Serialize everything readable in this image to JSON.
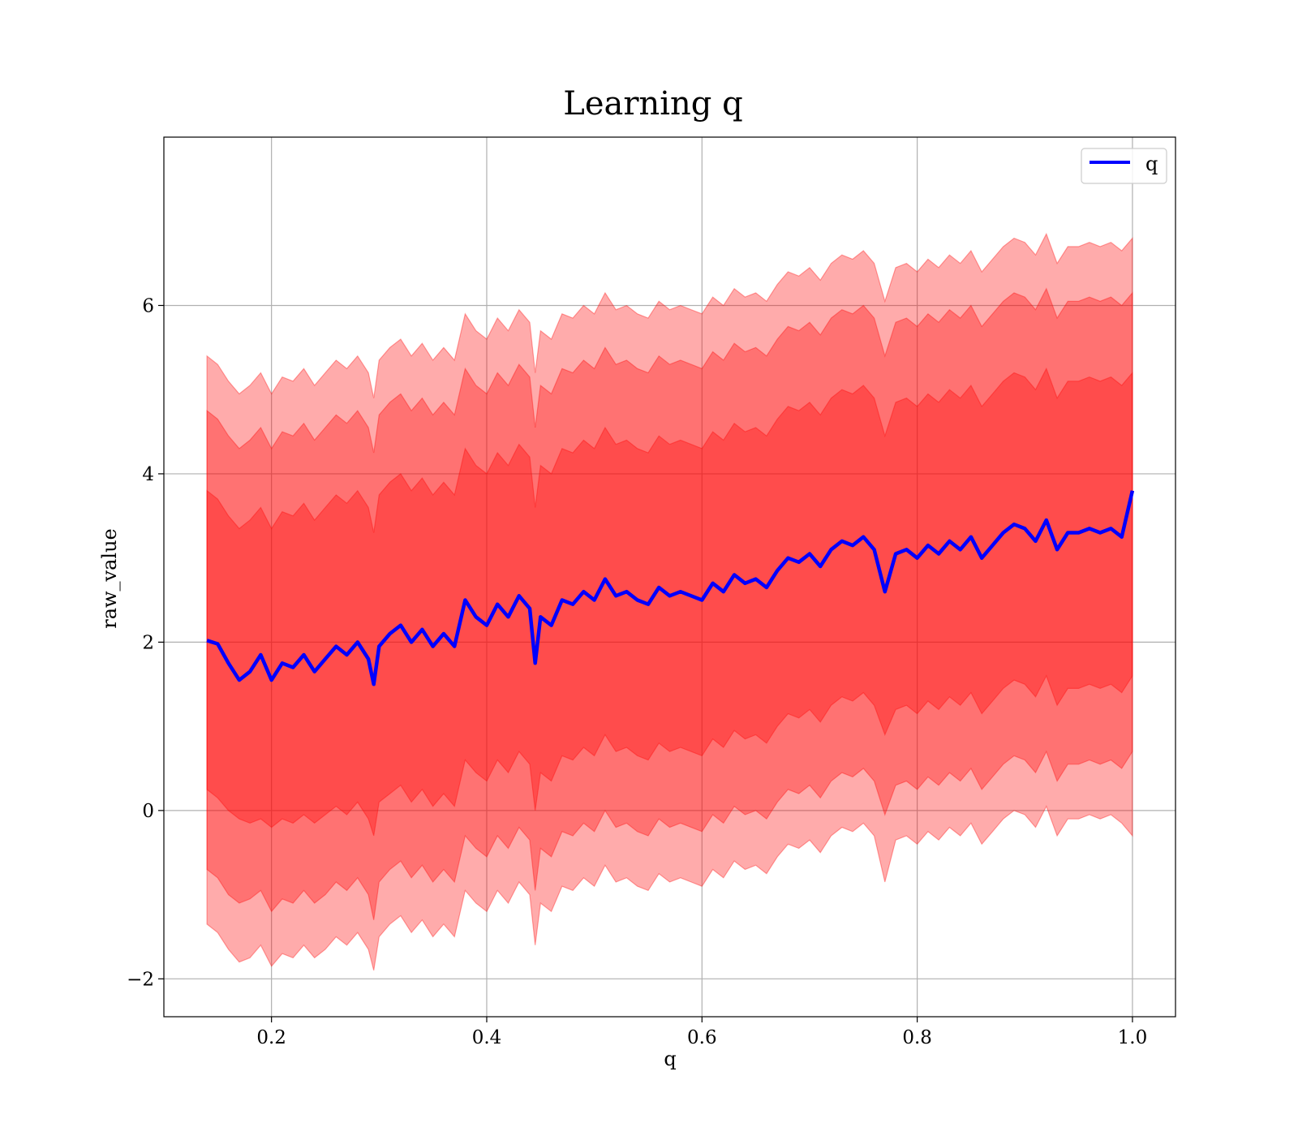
{
  "chart_data": {
    "type": "area",
    "title": "Learning q",
    "xlabel": "q",
    "ylabel": "raw_value",
    "xlim": [
      0.1,
      1.04
    ],
    "ylim": [
      -2.45,
      8.0
    ],
    "xticks": [
      {
        "value": 0.2,
        "label": "0.2"
      },
      {
        "value": 0.4,
        "label": "0.4"
      },
      {
        "value": 0.6,
        "label": "0.6"
      },
      {
        "value": 0.8,
        "label": "0.8"
      },
      {
        "value": 1.0,
        "label": "1.0"
      }
    ],
    "yticks": [
      {
        "value": -2,
        "label": "−2"
      },
      {
        "value": 0,
        "label": "0"
      },
      {
        "value": 2,
        "label": "2"
      },
      {
        "value": 4,
        "label": "4"
      },
      {
        "value": 6,
        "label": "6"
      }
    ],
    "grid": true,
    "legend_position": "top-right",
    "series": [
      {
        "name": "q",
        "color": "#0000ff",
        "x": [
          0.14,
          0.15,
          0.16,
          0.17,
          0.18,
          0.19,
          0.2,
          0.21,
          0.22,
          0.23,
          0.24,
          0.25,
          0.26,
          0.27,
          0.28,
          0.29,
          0.295,
          0.3,
          0.31,
          0.32,
          0.33,
          0.34,
          0.35,
          0.36,
          0.37,
          0.38,
          0.39,
          0.4,
          0.41,
          0.42,
          0.43,
          0.44,
          0.445,
          0.45,
          0.46,
          0.47,
          0.48,
          0.49,
          0.5,
          0.51,
          0.52,
          0.53,
          0.54,
          0.55,
          0.56,
          0.57,
          0.58,
          0.59,
          0.6,
          0.61,
          0.62,
          0.63,
          0.64,
          0.65,
          0.66,
          0.67,
          0.68,
          0.69,
          0.7,
          0.71,
          0.72,
          0.73,
          0.74,
          0.75,
          0.76,
          0.77,
          0.78,
          0.79,
          0.8,
          0.81,
          0.82,
          0.83,
          0.84,
          0.85,
          0.86,
          0.87,
          0.88,
          0.89,
          0.9,
          0.91,
          0.92,
          0.93,
          0.94,
          0.95,
          0.96,
          0.97,
          0.98,
          0.99,
          1.0
        ],
        "y": [
          2.02,
          1.98,
          1.75,
          1.55,
          1.65,
          1.85,
          1.55,
          1.75,
          1.7,
          1.85,
          1.65,
          1.8,
          1.95,
          1.85,
          2.0,
          1.8,
          1.5,
          1.95,
          2.1,
          2.2,
          2.0,
          2.15,
          1.95,
          2.1,
          1.95,
          2.5,
          2.3,
          2.2,
          2.45,
          2.3,
          2.55,
          2.4,
          1.75,
          2.3,
          2.2,
          2.5,
          2.45,
          2.6,
          2.5,
          2.75,
          2.55,
          2.6,
          2.5,
          2.45,
          2.65,
          2.55,
          2.6,
          2.55,
          2.5,
          2.7,
          2.6,
          2.8,
          2.7,
          2.75,
          2.65,
          2.85,
          3.0,
          2.95,
          3.05,
          2.9,
          3.1,
          3.2,
          3.15,
          3.25,
          3.1,
          2.6,
          3.05,
          3.1,
          3.0,
          3.15,
          3.05,
          3.2,
          3.1,
          3.25,
          3.0,
          3.15,
          3.3,
          3.4,
          3.35,
          3.2,
          3.45,
          3.1,
          3.3,
          3.3,
          3.35,
          3.3,
          3.35,
          3.25,
          3.8
        ],
        "bands": [
          {
            "lower": [
              0.25,
              0.15,
              0.0,
              -0.1,
              -0.15,
              -0.1,
              -0.2,
              -0.1,
              -0.15,
              -0.05,
              -0.15,
              -0.05,
              0.05,
              -0.05,
              0.1,
              -0.1,
              -0.3,
              0.1,
              0.2,
              0.3,
              0.1,
              0.25,
              0.05,
              0.2,
              0.05,
              0.6,
              0.45,
              0.35,
              0.6,
              0.45,
              0.7,
              0.55,
              0.0,
              0.45,
              0.35,
              0.65,
              0.6,
              0.75,
              0.65,
              0.9,
              0.7,
              0.75,
              0.65,
              0.6,
              0.8,
              0.7,
              0.75,
              0.7,
              0.65,
              0.85,
              0.75,
              0.95,
              0.85,
              0.9,
              0.8,
              1.0,
              1.15,
              1.1,
              1.2,
              1.05,
              1.25,
              1.35,
              1.3,
              1.4,
              1.25,
              0.9,
              1.2,
              1.25,
              1.15,
              1.3,
              1.2,
              1.35,
              1.25,
              1.4,
              1.15,
              1.3,
              1.45,
              1.55,
              1.5,
              1.35,
              1.6,
              1.25,
              1.45,
              1.45,
              1.5,
              1.45,
              1.5,
              1.4,
              1.6
            ],
            "upper": [
              3.8,
              3.7,
              3.5,
              3.35,
              3.45,
              3.6,
              3.35,
              3.55,
              3.5,
              3.65,
              3.45,
              3.6,
              3.75,
              3.65,
              3.8,
              3.6,
              3.3,
              3.75,
              3.9,
              4.0,
              3.8,
              3.95,
              3.75,
              3.9,
              3.75,
              4.3,
              4.1,
              4.0,
              4.25,
              4.1,
              4.35,
              4.2,
              3.6,
              4.1,
              4.0,
              4.3,
              4.25,
              4.4,
              4.3,
              4.55,
              4.35,
              4.4,
              4.3,
              4.25,
              4.45,
              4.35,
              4.4,
              4.35,
              4.3,
              4.5,
              4.4,
              4.6,
              4.5,
              4.55,
              4.45,
              4.65,
              4.8,
              4.75,
              4.85,
              4.7,
              4.9,
              5.0,
              4.95,
              5.05,
              4.9,
              4.45,
              4.85,
              4.9,
              4.8,
              4.95,
              4.85,
              5.0,
              4.9,
              5.05,
              4.8,
              4.95,
              5.1,
              5.2,
              5.15,
              5.0,
              5.25,
              4.9,
              5.1,
              5.1,
              5.15,
              5.1,
              5.15,
              5.05,
              5.2
            ]
          },
          {
            "lower": [
              -0.7,
              -0.8,
              -1.0,
              -1.1,
              -1.05,
              -0.95,
              -1.2,
              -1.05,
              -1.1,
              -0.95,
              -1.1,
              -1.0,
              -0.85,
              -0.95,
              -0.8,
              -1.0,
              -1.3,
              -0.85,
              -0.7,
              -0.6,
              -0.8,
              -0.65,
              -0.85,
              -0.7,
              -0.85,
              -0.3,
              -0.45,
              -0.55,
              -0.3,
              -0.45,
              -0.2,
              -0.35,
              -0.95,
              -0.45,
              -0.55,
              -0.25,
              -0.3,
              -0.15,
              -0.25,
              0.0,
              -0.2,
              -0.15,
              -0.25,
              -0.3,
              -0.1,
              -0.2,
              -0.15,
              -0.2,
              -0.25,
              -0.05,
              -0.15,
              0.05,
              -0.05,
              0.0,
              -0.1,
              0.1,
              0.25,
              0.2,
              0.3,
              0.15,
              0.35,
              0.45,
              0.4,
              0.5,
              0.35,
              -0.05,
              0.3,
              0.35,
              0.25,
              0.4,
              0.3,
              0.45,
              0.35,
              0.5,
              0.25,
              0.4,
              0.55,
              0.65,
              0.6,
              0.45,
              0.7,
              0.35,
              0.55,
              0.55,
              0.6,
              0.55,
              0.6,
              0.5,
              0.7
            ],
            "upper": [
              4.75,
              4.65,
              4.45,
              4.3,
              4.4,
              4.55,
              4.3,
              4.5,
              4.45,
              4.6,
              4.4,
              4.55,
              4.7,
              4.6,
              4.75,
              4.55,
              4.25,
              4.7,
              4.85,
              4.95,
              4.75,
              4.9,
              4.7,
              4.85,
              4.7,
              5.25,
              5.05,
              4.95,
              5.2,
              5.05,
              5.3,
              5.15,
              4.55,
              5.05,
              4.95,
              5.25,
              5.2,
              5.35,
              5.25,
              5.5,
              5.3,
              5.35,
              5.25,
              5.2,
              5.4,
              5.3,
              5.35,
              5.3,
              5.25,
              5.45,
              5.35,
              5.55,
              5.45,
              5.5,
              5.4,
              5.6,
              5.75,
              5.7,
              5.8,
              5.65,
              5.85,
              5.95,
              5.9,
              6.0,
              5.85,
              5.4,
              5.8,
              5.85,
              5.75,
              5.9,
              5.8,
              5.95,
              5.85,
              6.0,
              5.75,
              5.9,
              6.05,
              6.15,
              6.1,
              5.95,
              6.2,
              5.85,
              6.05,
              6.05,
              6.1,
              6.05,
              6.1,
              6.0,
              6.15
            ]
          },
          {
            "lower": [
              -1.35,
              -1.45,
              -1.65,
              -1.8,
              -1.75,
              -1.6,
              -1.85,
              -1.7,
              -1.75,
              -1.6,
              -1.75,
              -1.65,
              -1.5,
              -1.6,
              -1.45,
              -1.65,
              -1.9,
              -1.5,
              -1.35,
              -1.25,
              -1.45,
              -1.3,
              -1.5,
              -1.35,
              -1.5,
              -0.95,
              -1.1,
              -1.2,
              -0.95,
              -1.1,
              -0.85,
              -1.0,
              -1.6,
              -1.1,
              -1.2,
              -0.9,
              -0.95,
              -0.8,
              -0.9,
              -0.65,
              -0.85,
              -0.8,
              -0.9,
              -0.95,
              -0.75,
              -0.85,
              -0.8,
              -0.85,
              -0.9,
              -0.7,
              -0.8,
              -0.6,
              -0.7,
              -0.65,
              -0.75,
              -0.55,
              -0.4,
              -0.45,
              -0.35,
              -0.5,
              -0.3,
              -0.2,
              -0.25,
              -0.15,
              -0.3,
              -0.85,
              -0.35,
              -0.3,
              -0.4,
              -0.25,
              -0.35,
              -0.2,
              -0.3,
              -0.15,
              -0.4,
              -0.25,
              -0.1,
              0.0,
              -0.05,
              -0.2,
              0.05,
              -0.3,
              -0.1,
              -0.1,
              -0.05,
              -0.1,
              -0.05,
              -0.15,
              -0.3
            ],
            "upper": [
              5.4,
              5.3,
              5.1,
              4.95,
              5.05,
              5.2,
              4.95,
              5.15,
              5.1,
              5.25,
              5.05,
              5.2,
              5.35,
              5.25,
              5.4,
              5.2,
              4.9,
              5.35,
              5.5,
              5.6,
              5.4,
              5.55,
              5.35,
              5.5,
              5.35,
              5.9,
              5.7,
              5.6,
              5.85,
              5.7,
              5.95,
              5.8,
              5.2,
              5.7,
              5.6,
              5.9,
              5.85,
              6.0,
              5.9,
              6.15,
              5.95,
              6.0,
              5.9,
              5.85,
              6.05,
              5.95,
              6.0,
              5.95,
              5.9,
              6.1,
              6.0,
              6.2,
              6.1,
              6.15,
              6.05,
              6.25,
              6.4,
              6.35,
              6.45,
              6.3,
              6.5,
              6.6,
              6.55,
              6.65,
              6.5,
              6.05,
              6.45,
              6.5,
              6.4,
              6.55,
              6.45,
              6.6,
              6.5,
              6.65,
              6.4,
              6.55,
              6.7,
              6.8,
              6.75,
              6.6,
              6.85,
              6.5,
              6.7,
              6.7,
              6.75,
              6.7,
              6.75,
              6.65,
              6.8
            ]
          }
        ]
      }
    ]
  }
}
